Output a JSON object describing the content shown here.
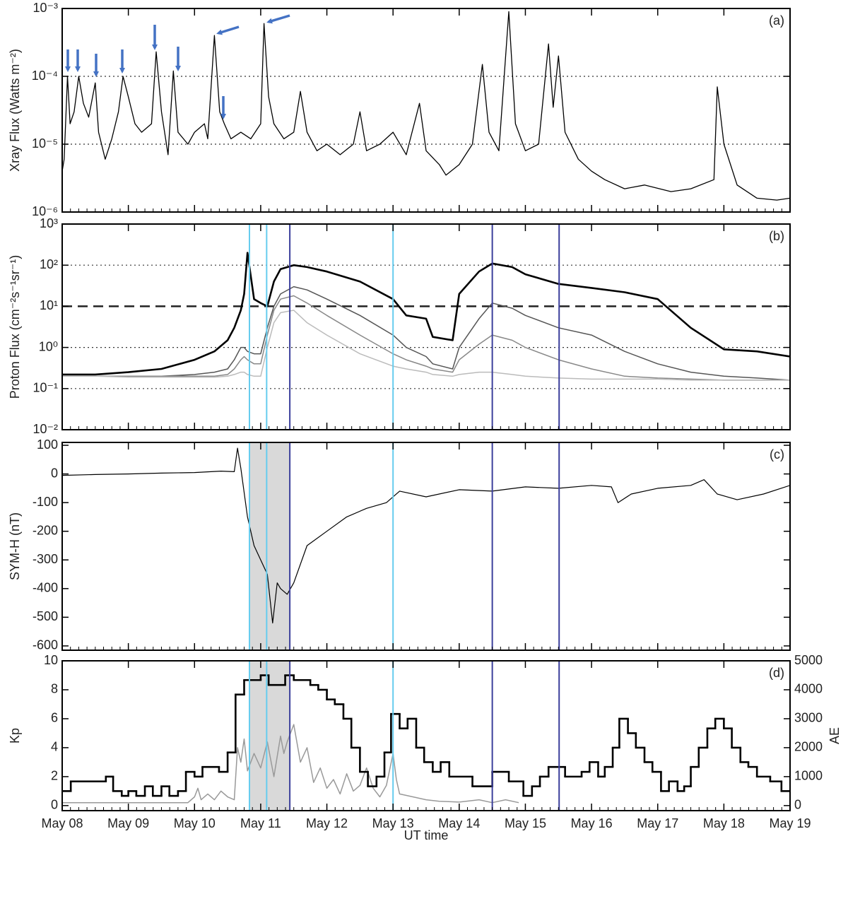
{
  "chart_data": [
    {
      "type": "line",
      "label": "(a)",
      "ylabel": "Xray Flux (Watts m⁻²)",
      "log": true,
      "grid": "dotted",
      "xlim": [
        0,
        11
      ],
      "ylim": [
        1e-06,
        0.001
      ],
      "yticks": [
        {
          "value": 1e-06,
          "label": "10⁻⁶"
        },
        {
          "value": 1e-05,
          "label": "10⁻⁵"
        },
        {
          "value": 0.0001,
          "label": "10⁻⁴"
        },
        {
          "value": 0.001,
          "label": "10⁻³"
        }
      ],
      "series": [
        {
          "color": "#000000",
          "width": 1.3,
          "x": [
            0,
            0.03,
            0.08,
            0.12,
            0.18,
            0.25,
            0.32,
            0.4,
            0.5,
            0.55,
            0.65,
            0.75,
            0.85,
            0.92,
            1.0,
            1.1,
            1.2,
            1.35,
            1.42,
            1.5,
            1.6,
            1.68,
            1.75,
            1.9,
            2.0,
            2.15,
            2.2,
            2.3,
            2.38,
            2.45,
            2.55,
            2.7,
            2.85,
            3.0,
            3.05,
            3.12,
            3.2,
            3.35,
            3.5,
            3.6,
            3.7,
            3.85,
            4.0,
            4.2,
            4.4,
            4.5,
            4.6,
            4.8,
            5.0,
            5.2,
            5.4,
            5.5,
            5.7,
            5.8,
            6.0,
            6.2,
            6.35,
            6.45,
            6.6,
            6.75,
            6.85,
            7.0,
            7.2,
            7.35,
            7.42,
            7.5,
            7.6,
            7.8,
            8.0,
            8.2,
            8.5,
            8.8,
            9.2,
            9.5,
            9.85,
            9.9,
            10.0,
            10.2,
            10.5,
            10.8,
            11
          ],
          "values": [
            4e-06,
            6e-06,
            0.0001,
            2e-05,
            3e-05,
            0.0001,
            4e-05,
            2.5e-05,
            8e-05,
            1.5e-05,
            6e-06,
            1.2e-05,
            3e-05,
            0.0001,
            5e-05,
            2e-05,
            1.5e-05,
            2e-05,
            0.00023,
            3e-05,
            7e-06,
            0.00012,
            1.5e-05,
            1e-05,
            1.5e-05,
            2e-05,
            1.2e-05,
            0.0004,
            3e-05,
            2e-05,
            1.2e-05,
            1.5e-05,
            1.2e-05,
            2e-05,
            0.0006,
            5e-05,
            2e-05,
            1.2e-05,
            1.5e-05,
            6e-05,
            1.5e-05,
            8e-06,
            1e-05,
            7e-06,
            1e-05,
            3e-05,
            8e-06,
            1e-05,
            1.5e-05,
            7e-06,
            4e-05,
            8e-06,
            5e-06,
            3.5e-06,
            5e-06,
            1e-05,
            0.00015,
            1.5e-05,
            8e-06,
            0.0009,
            2e-05,
            8e-06,
            1e-05,
            0.0003,
            3.5e-05,
            0.0002,
            1.5e-05,
            6e-06,
            4e-06,
            3e-06,
            2.2e-06,
            2.5e-06,
            2e-06,
            2.2e-06,
            3e-06,
            7e-05,
            1e-05,
            2.5e-06,
            1.6e-06,
            1.5e-06,
            1.6e-06
          ]
        }
      ]
    },
    {
      "type": "line",
      "label": "(b)",
      "ylabel": "Proton Flux (cm⁻²s⁻¹sr⁻¹)",
      "log": true,
      "grid": "dotted",
      "xlim": [
        0,
        11
      ],
      "ylim": [
        0.01,
        1000
      ],
      "yticks": [
        {
          "value": 0.01,
          "label": "10⁻²"
        },
        {
          "value": 0.1,
          "label": "10⁻¹"
        },
        {
          "value": 1,
          "label": "10⁰"
        },
        {
          "value": 10,
          "label": "10¹"
        },
        {
          "value": 100,
          "label": "10²"
        },
        {
          "value": 1000,
          "label": "10³"
        }
      ],
      "hlines": [
        {
          "value": 10,
          "style": "dashed"
        }
      ],
      "vlines": [
        {
          "x": 2.83,
          "color": "#66ccee"
        },
        {
          "x": 3.09,
          "color": "#66ccee"
        },
        {
          "x": 5.0,
          "color": "#66ccee"
        },
        {
          "x": 3.44,
          "color": "#3b3f9c"
        },
        {
          "x": 6.5,
          "color": "#3b3f9c"
        },
        {
          "x": 7.51,
          "color": "#3b3f9c"
        }
      ],
      "series": [
        {
          "color": "#000000",
          "width": 2.6,
          "x": [
            0,
            0.5,
            1,
            1.5,
            2,
            2.3,
            2.5,
            2.6,
            2.7,
            2.75,
            2.8,
            2.9,
            3.0,
            3.1,
            3.2,
            3.3,
            3.5,
            3.7,
            4,
            4.5,
            5,
            5.2,
            5.5,
            5.6,
            5.9,
            6,
            6.3,
            6.5,
            6.8,
            7,
            7.5,
            8,
            8.5,
            9,
            9.5,
            10,
            10.5,
            11
          ],
          "values": [
            0.22,
            0.22,
            0.25,
            0.3,
            0.5,
            0.8,
            1.5,
            3,
            8,
            20,
            200,
            15,
            12,
            10,
            40,
            80,
            100,
            90,
            70,
            40,
            15,
            6,
            5,
            1.8,
            1.5,
            20,
            70,
            110,
            90,
            60,
            35,
            28,
            22,
            15,
            3,
            0.9,
            0.8,
            0.6
          ]
        },
        {
          "color": "#555555",
          "width": 1.5,
          "x": [
            0,
            0.5,
            1,
            1.5,
            2,
            2.3,
            2.5,
            2.6,
            2.7,
            2.75,
            2.8,
            2.9,
            3.0,
            3.1,
            3.2,
            3.3,
            3.5,
            3.7,
            4,
            4.5,
            5,
            5.2,
            5.5,
            5.6,
            5.9,
            6,
            6.3,
            6.5,
            6.8,
            7,
            7.5,
            8,
            8.5,
            9,
            9.5,
            10,
            10.5,
            11
          ],
          "values": [
            0.2,
            0.2,
            0.2,
            0.2,
            0.22,
            0.25,
            0.3,
            0.5,
            1,
            1,
            0.8,
            0.7,
            0.7,
            3,
            10,
            20,
            30,
            25,
            15,
            6,
            2,
            1,
            0.6,
            0.4,
            0.3,
            1,
            5,
            12,
            9,
            6,
            3,
            2,
            0.8,
            0.4,
            0.25,
            0.2,
            0.18,
            0.16
          ]
        },
        {
          "color": "#888888",
          "width": 1.5,
          "x": [
            0,
            0.5,
            1,
            1.5,
            2,
            2.3,
            2.5,
            2.6,
            2.7,
            2.75,
            2.8,
            2.9,
            3.0,
            3.1,
            3.2,
            3.3,
            3.5,
            3.7,
            4,
            4.5,
            5,
            5.2,
            5.5,
            5.6,
            5.9,
            6,
            6.3,
            6.5,
            6.8,
            7,
            7.5,
            8,
            8.5,
            9,
            9.5,
            10,
            10.5,
            11
          ],
          "values": [
            0.2,
            0.2,
            0.2,
            0.2,
            0.2,
            0.2,
            0.22,
            0.3,
            0.5,
            0.6,
            0.5,
            0.4,
            0.4,
            2,
            8,
            15,
            18,
            12,
            6,
            2,
            0.7,
            0.5,
            0.35,
            0.3,
            0.25,
            0.5,
            1.2,
            2,
            1.5,
            1,
            0.5,
            0.3,
            0.2,
            0.18,
            0.17,
            0.16,
            0.16,
            0.16
          ]
        },
        {
          "color": "#bbbbbb",
          "width": 1.5,
          "x": [
            0,
            0.5,
            1,
            1.5,
            2,
            2.3,
            2.5,
            2.6,
            2.7,
            2.75,
            2.8,
            2.9,
            3.0,
            3.1,
            3.2,
            3.3,
            3.5,
            3.7,
            4,
            4.5,
            5,
            5.2,
            5.5,
            5.6,
            5.9,
            6,
            6.3,
            6.5,
            6.8,
            7,
            7.5,
            8,
            8.5,
            9,
            9.5,
            10,
            10.5,
            11
          ],
          "values": [
            0.2,
            0.2,
            0.19,
            0.19,
            0.19,
            0.19,
            0.2,
            0.22,
            0.25,
            0.25,
            0.22,
            0.2,
            0.2,
            1,
            4,
            7,
            8,
            4,
            2,
            0.7,
            0.35,
            0.3,
            0.25,
            0.22,
            0.2,
            0.22,
            0.25,
            0.25,
            0.22,
            0.2,
            0.18,
            0.17,
            0.17,
            0.17,
            0.16,
            0.16,
            0.16,
            0.16
          ]
        }
      ]
    },
    {
      "type": "line",
      "label": "(c)",
      "ylabel": "SYM-H (nT)",
      "log": false,
      "xlim": [
        0,
        11
      ],
      "ylim": [
        -615,
        110
      ],
      "yticks": [
        -600,
        -500,
        -400,
        -300,
        -200,
        -100,
        0,
        100
      ],
      "shade": [
        2.82,
        3.44
      ],
      "shade_color": "#d9d9d9",
      "vlines": [
        {
          "x": 2.83,
          "color": "#66ccee"
        },
        {
          "x": 3.09,
          "color": "#66ccee"
        },
        {
          "x": 5.0,
          "color": "#66ccee"
        },
        {
          "x": 3.44,
          "color": "#3b3f9c"
        },
        {
          "x": 6.5,
          "color": "#3b3f9c"
        },
        {
          "x": 7.51,
          "color": "#3b3f9c"
        }
      ],
      "series": [
        {
          "color": "#000000",
          "width": 1.2,
          "x": [
            0,
            0.5,
            1,
            1.5,
            2,
            2.4,
            2.6,
            2.65,
            2.7,
            2.8,
            2.9,
            3.0,
            3.1,
            3.18,
            3.25,
            3.3,
            3.4,
            3.5,
            3.7,
            4.0,
            4.3,
            4.6,
            4.9,
            5.1,
            5.5,
            6,
            6.5,
            7,
            7.5,
            8,
            8.3,
            8.4,
            8.6,
            9,
            9.5,
            9.7,
            9.9,
            10.2,
            10.6,
            11
          ],
          "values": [
            -5,
            -2,
            0,
            3,
            5,
            10,
            8,
            90,
            20,
            -150,
            -250,
            -300,
            -350,
            -520,
            -380,
            -400,
            -420,
            -380,
            -250,
            -200,
            -150,
            -120,
            -100,
            -60,
            -80,
            -55,
            -60,
            -45,
            -50,
            -40,
            -45,
            -100,
            -70,
            -50,
            -40,
            -20,
            -70,
            -90,
            -70,
            -40
          ]
        }
      ]
    },
    {
      "type": "line",
      "label": "(d)",
      "ylabel": "Kp",
      "y2label": "AE",
      "xlabel": "UT time",
      "log": false,
      "xlim": [
        0,
        11
      ],
      "ylim": [
        -0.35,
        10
      ],
      "y2lim": [
        -175,
        5000
      ],
      "yticks": [
        0,
        2,
        4,
        6,
        8,
        10
      ],
      "y2ticks": [
        0,
        1000,
        2000,
        3000,
        4000,
        5000
      ],
      "xticks": [
        {
          "value": 0,
          "label": "May 08"
        },
        {
          "value": 1,
          "label": "May 09"
        },
        {
          "value": 2,
          "label": "May 10"
        },
        {
          "value": 3,
          "label": "May 11"
        },
        {
          "value": 4,
          "label": "May 12"
        },
        {
          "value": 5,
          "label": "May 13"
        },
        {
          "value": 6,
          "label": "May 14"
        },
        {
          "value": 7,
          "label": "May 15"
        },
        {
          "value": 8,
          "label": "May 16"
        },
        {
          "value": 9,
          "label": "May 17"
        },
        {
          "value": 10,
          "label": "May 18"
        },
        {
          "value": 11,
          "label": "May 19"
        }
      ],
      "shade": [
        2.82,
        3.44
      ],
      "shade_color": "#d9d9d9",
      "vlines": [
        {
          "x": 2.83,
          "color": "#66ccee"
        },
        {
          "x": 3.09,
          "color": "#66ccee"
        },
        {
          "x": 5.0,
          "color": "#66ccee"
        },
        {
          "x": 3.44,
          "color": "#3b3f9c"
        },
        {
          "x": 6.5,
          "color": "#3b3f9c"
        },
        {
          "x": 7.51,
          "color": "#3b3f9c"
        }
      ],
      "series": [
        {
          "color": "#999999",
          "width": 1.5,
          "axis": "y2",
          "x": [
            0,
            0.5,
            1,
            1.5,
            1.9,
            2.0,
            2.05,
            2.1,
            2.2,
            2.3,
            2.4,
            2.5,
            2.6,
            2.65,
            2.7,
            2.75,
            2.8,
            2.9,
            3.0,
            3.1,
            3.2,
            3.3,
            3.35,
            3.4,
            3.5,
            3.6,
            3.7,
            3.8,
            3.9,
            4.0,
            4.1,
            4.2,
            4.3,
            4.4,
            4.5,
            4.6,
            4.7,
            4.8,
            4.9,
            5.0,
            5.05,
            5.1,
            5.3,
            5.5,
            5.7,
            6.0,
            6.3,
            6.5,
            6.7,
            6.9
          ],
          "values": [
            100,
            100,
            100,
            100,
            100,
            300,
            600,
            200,
            400,
            200,
            500,
            300,
            200,
            2000,
            1500,
            2300,
            1200,
            1800,
            1300,
            2200,
            1000,
            2400,
            1800,
            2200,
            2800,
            1500,
            2000,
            800,
            1300,
            600,
            900,
            400,
            1100,
            500,
            700,
            1300,
            600,
            300,
            700,
            1800,
            900,
            400,
            300,
            200,
            150,
            120,
            200,
            100,
            200,
            100
          ]
        },
        {
          "color": "#000000",
          "width": 2.6,
          "drawstyle": "steps-post",
          "x": [
            0,
            0.13,
            0.66,
            0.77,
            0.9,
            1.0,
            1.12,
            1.25,
            1.37,
            1.5,
            1.62,
            1.75,
            1.87,
            2.0,
            2.12,
            2.37,
            2.5,
            2.62,
            2.75,
            3.0,
            3.12,
            3.37,
            3.5,
            3.75,
            3.87,
            4.0,
            4.12,
            4.25,
            4.37,
            4.5,
            4.62,
            4.75,
            4.87,
            4.97,
            5.1,
            5.22,
            5.35,
            5.47,
            5.6,
            5.72,
            5.85,
            6.2,
            6.5,
            6.75,
            6.97,
            7.1,
            7.22,
            7.35,
            7.6,
            7.85,
            7.97,
            8.1,
            8.2,
            8.32,
            8.42,
            8.55,
            8.67,
            8.8,
            8.92,
            9.05,
            9.17,
            9.3,
            9.4,
            9.5,
            9.62,
            9.75,
            9.87,
            10.0,
            10.12,
            10.25,
            10.37,
            10.5,
            10.7,
            10.87
          ],
          "values": [
            1,
            1.67,
            2,
            1,
            0.67,
            1,
            0.67,
            1.33,
            0.67,
            1.33,
            0.67,
            1,
            2.33,
            2,
            2.67,
            2.33,
            3.67,
            7.67,
            8.67,
            9,
            8.33,
            9,
            8.67,
            8.33,
            8,
            7.33,
            7,
            6,
            4,
            2.33,
            1.33,
            2,
            3.67,
            6.33,
            5.33,
            6,
            4,
            3,
            2.33,
            3,
            2,
            1.33,
            2.33,
            1.67,
            0.67,
            1.33,
            2,
            2.67,
            2,
            2.33,
            3,
            2,
            2.67,
            4,
            6,
            5,
            4,
            3,
            2.33,
            1,
            1.67,
            1,
            1.33,
            2.67,
            4,
            5.33,
            6,
            5.33,
            4,
            3,
            2.67,
            2,
            1.67,
            1
          ]
        }
      ]
    }
  ]
}
